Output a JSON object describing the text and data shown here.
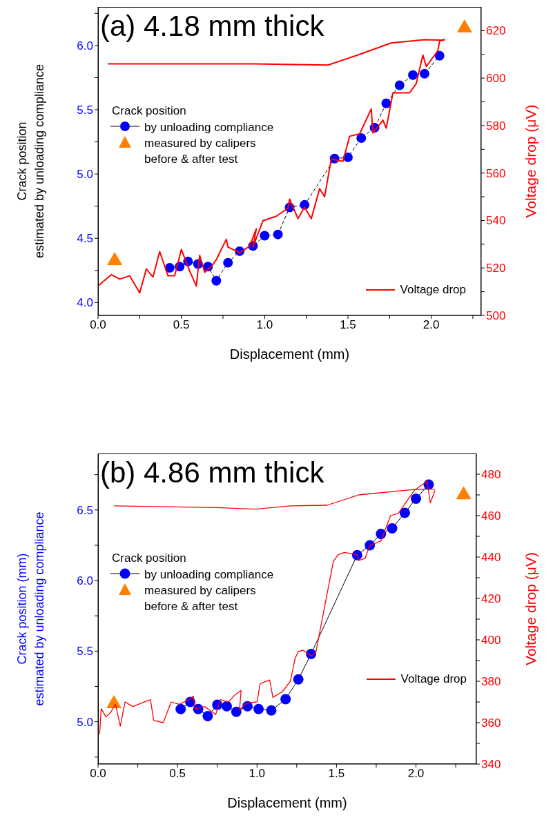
{
  "chart_data": [
    {
      "type": "line",
      "title": "(a) 4.18 mm thick",
      "xlabel": "Displacement (mm)",
      "ylabel": "Crack position\nestimated by unloading compliance",
      "y2label": "Voltage drop (μV)",
      "legend_title": "Crack position",
      "legend": "left",
      "xlim": [
        0,
        2.3
      ],
      "xticks": [
        {
          "value": 0,
          "label": "0.0"
        },
        {
          "value": 0.25,
          "label": null
        },
        {
          "value": 0.5,
          "label": "0.5"
        },
        {
          "value": 0.75,
          "label": null
        },
        {
          "value": 1,
          "label": "1.0"
        },
        {
          "value": 1.25,
          "label": null
        },
        {
          "value": 1.5,
          "label": "1.5"
        },
        {
          "value": 1.75,
          "label": null
        },
        {
          "value": 2,
          "label": "2.0"
        },
        {
          "value": 2.25,
          "label": null
        }
      ],
      "ylim": [
        3.9,
        6.3
      ],
      "yticks": [
        {
          "value": 4,
          "label": "4.0"
        },
        {
          "value": 4.25,
          "label": null
        },
        {
          "value": 4.5,
          "label": "4.5"
        },
        {
          "value": 4.75,
          "label": null
        },
        {
          "value": 5,
          "label": "5.0"
        },
        {
          "value": 5.25,
          "label": null
        },
        {
          "value": 5.5,
          "label": "5.5"
        },
        {
          "value": 5.75,
          "label": null
        },
        {
          "value": 6,
          "label": "6.0"
        },
        {
          "value": 6.25,
          "label": null
        }
      ],
      "y2lim": [
        500,
        630
      ],
      "y2ticks": [
        500,
        {
          "value": 510,
          "label": null
        },
        520,
        {
          "value": 530,
          "label": null
        },
        540,
        {
          "value": 550,
          "label": null
        },
        560,
        {
          "value": 570,
          "label": null
        },
        580,
        {
          "value": 590,
          "label": null
        },
        600,
        {
          "value": 610,
          "label": null
        },
        620
      ],
      "series": [
        {
          "type": "line",
          "name": "by unloading compliance",
          "color": "#0000ff",
          "marker": "circle",
          "line_style": "dashed",
          "x": [
            0.43,
            0.49,
            0.54,
            0.6,
            0.66,
            0.71,
            0.78,
            0.85,
            0.93,
            1.0,
            1.08,
            1.15,
            1.24,
            1.42,
            1.5,
            1.58,
            1.66,
            1.73,
            1.81,
            1.89,
            1.96,
            2.05
          ],
          "values": [
            4.27,
            4.28,
            4.32,
            4.3,
            4.28,
            4.17,
            4.31,
            4.4,
            4.44,
            4.52,
            4.53,
            4.74,
            4.76,
            5.12,
            5.13,
            5.28,
            5.36,
            5.55,
            5.69,
            5.77,
            5.78,
            5.92
          ]
        },
        {
          "type": "scatter",
          "name": "measured by calipers before & after test",
          "color": "#ff8000",
          "marker": "triangle",
          "x": [
            0.1,
            2.2
          ],
          "values": [
            4.34,
            6.15
          ]
        },
        {
          "type": "line",
          "name": "Voltage drop",
          "color": "#ff0000",
          "marker": "none",
          "line_style": "solid",
          "axis": "y2",
          "x": [
            0,
            0.08,
            0.13,
            0.19,
            0.25,
            0.29,
            0.33,
            0.37,
            0.42,
            0.46,
            0.5,
            0.55,
            0.59,
            0.61,
            0.64,
            0.68,
            0.71,
            0.77,
            0.78,
            0.85,
            0.91,
            0.95,
            0.93,
            0.99,
            1.07,
            1.14,
            1.15,
            1.2,
            1.24,
            1.28,
            1.33,
            1.36,
            1.4,
            1.47,
            1.51,
            1.57,
            1.64,
            1.65,
            1.71,
            1.73,
            1.77,
            1.87,
            1.91,
            1.95,
            1.97,
            2.04,
            2.05,
            2.08
          ],
          "values": [
            512.4,
            517.2,
            515.3,
            516.7,
            509.5,
            519.6,
            516.2,
            526.9,
            516.7,
            516.7,
            527.8,
            518.7,
            512.4,
            525.4,
            518.2,
            520.6,
            523.5,
            532.1,
            528.8,
            526.4,
            529.2,
            536.5,
            528.8,
            539.9,
            541.8,
            545.2,
            549,
            540.8,
            545.6,
            540.8,
            553.4,
            550,
            565.9,
            564.9,
            575.5,
            576.5,
            587,
            576.9,
            582.3,
            578.9,
            593.8,
            593.8,
            597.7,
            609.7,
            604.9,
            611.6,
            615.5,
            616.4
          ]
        },
        {
          "type": "line",
          "color": "#ff0000",
          "marker": "none",
          "line_style": "solid",
          "axis": "y2",
          "x": [
            0.06,
            0.5,
            0.93,
            1.38,
            1.55,
            1.76,
            1.96,
            2.08
          ],
          "values": [
            606,
            606,
            606,
            605.5,
            609.5,
            614.8,
            616.2,
            616
          ]
        }
      ]
    },
    {
      "type": "line",
      "title": "(b) 4.86 mm thick",
      "xlabel": "Displacement (mm)",
      "ylabel": "Crack position (mm)\nestimated by unloading compliance",
      "y2label": "Voltage drop (μV)",
      "legend_title": "Crack position",
      "legend": "left",
      "xlim": [
        0,
        2.38
      ],
      "xticks": [
        {
          "value": 0,
          "label": "0.0"
        },
        {
          "value": 0.25,
          "label": null
        },
        {
          "value": 0.5,
          "label": "0.5"
        },
        {
          "value": 0.75,
          "label": null
        },
        {
          "value": 1,
          "label": "1.0"
        },
        {
          "value": 1.25,
          "label": null
        },
        {
          "value": 1.5,
          "label": "1.5"
        },
        {
          "value": 1.75,
          "label": null
        },
        {
          "value": 2,
          "label": "2.0"
        },
        {
          "value": 2.25,
          "label": null
        }
      ],
      "ylim": [
        4.7,
        6.9
      ],
      "yticks": [
        {
          "value": 4.75,
          "label": null
        },
        {
          "value": 5,
          "label": "5.0"
        },
        {
          "value": 5.25,
          "label": null
        },
        {
          "value": 5.5,
          "label": "5.5"
        },
        {
          "value": 5.75,
          "label": null
        },
        {
          "value": 6,
          "label": "6.0"
        },
        {
          "value": 6.25,
          "label": null
        },
        {
          "value": 6.5,
          "label": "6.5"
        },
        {
          "value": 6.75,
          "label": null
        }
      ],
      "y2lim": [
        340,
        490
      ],
      "y2ticks": [
        340,
        {
          "value": 350,
          "label": null
        },
        360,
        {
          "value": 370,
          "label": null
        },
        380,
        {
          "value": 390,
          "label": null
        },
        400,
        {
          "value": 410,
          "label": null
        },
        420,
        {
          "value": 430,
          "label": null
        },
        440,
        {
          "value": 450,
          "label": null
        },
        460,
        {
          "value": 470,
          "label": null
        },
        480
      ],
      "series": [
        {
          "type": "line",
          "name": "by unloading compliance",
          "color": "#0000ff",
          "marker": "circle",
          "line_style": "solid",
          "x": [
            0.52,
            0.58,
            0.63,
            0.69,
            0.75,
            0.81,
            0.87,
            0.94,
            1.01,
            1.09,
            1.18,
            1.26,
            1.34,
            1.63,
            1.71,
            1.78,
            1.85,
            1.93,
            2.0,
            2.08
          ],
          "values": [
            5.09,
            5.14,
            5.09,
            5.04,
            5.12,
            5.11,
            5.07,
            5.11,
            5.09,
            5.08,
            5.16,
            5.3,
            5.48,
            6.18,
            6.25,
            6.33,
            6.37,
            6.48,
            6.58,
            6.68
          ]
        },
        {
          "type": "scatter",
          "name": "measured by calipers before & after test",
          "color": "#ff8000",
          "marker": "triangle",
          "x": [
            0.1,
            2.3
          ],
          "values": [
            5.14,
            6.62
          ]
        },
        {
          "type": "line",
          "name": "Voltage drop",
          "color": "#ff0000",
          "marker": "none",
          "line_style": "solid",
          "axis": "y2",
          "x": [
            0.01,
            0.02,
            0.05,
            0.08,
            0.11,
            0.14,
            0.17,
            0.22,
            0.27,
            0.33,
            0.35,
            0.41,
            0.46,
            0.51,
            0.56,
            0.6,
            0.61,
            0.67,
            0.74,
            0.77,
            0.82,
            0.86,
            0.9,
            0.89,
            0.93,
            1.0,
            1.02,
            1.08,
            1.1,
            1.16,
            1.21,
            1.24,
            1.26,
            1.29,
            1.34,
            1.37,
            1.48,
            1.51,
            1.55,
            1.63,
            1.64,
            1.68,
            1.71,
            1.78,
            1.84,
            1.89,
            1.93,
            1.99,
            2.07,
            2.09,
            2.12
          ],
          "values": [
            354.5,
            366.7,
            362.8,
            365,
            368.9,
            358.3,
            370,
            367.8,
            369.4,
            371.1,
            361.1,
            360,
            370,
            368.9,
            370.6,
            372.8,
            366.7,
            367.8,
            363.9,
            371.1,
            370,
            373.3,
            375.6,
            366.1,
            369.4,
            370,
            378.9,
            380.6,
            372.2,
            375,
            380,
            391.1,
            394.4,
            395,
            392.2,
            393.9,
            437.8,
            441.1,
            442.2,
            441.1,
            438.3,
            439.4,
            445.6,
            447.8,
            460,
            461.1,
            465.6,
            472.2,
            476.7,
            466.1,
            472.2
          ]
        },
        {
          "type": "line",
          "color": "#ff0000",
          "marker": "none",
          "line_style": "solid",
          "axis": "y2",
          "x": [
            0.1,
            0.74,
            0.99,
            1.21,
            1.44,
            1.64,
            1.99,
            2.12
          ],
          "values": [
            464.7,
            463.9,
            463.1,
            464.7,
            465,
            470,
            472.6,
            472.8
          ]
        }
      ]
    }
  ]
}
